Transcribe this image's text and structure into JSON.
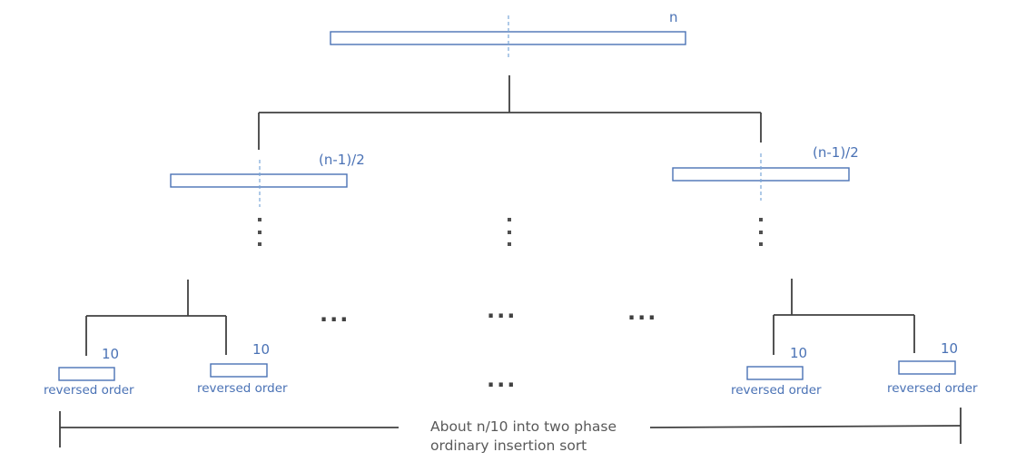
{
  "labels": {
    "top_size": "n",
    "left_size": "(n-1)/2",
    "right_size": "(n-1)/2",
    "leaf_size_1": "10",
    "leaf_size_2": "10",
    "leaf_size_3": "10",
    "leaf_size_4": "10",
    "leaf_order_1": "reversed order",
    "leaf_order_2": "reversed order",
    "leaf_order_3": "reversed order",
    "leaf_order_4": "reversed order",
    "ellipsis_1": "...",
    "ellipsis_2": "...",
    "ellipsis_3": "...",
    "ellipsis_4": "...",
    "caption_line1": "About n/10 into two phase",
    "caption_line2": "ordinary insertion sort"
  },
  "colors": {
    "array_outline": "#4a72b5",
    "tree_lines": "#404040",
    "label_text": "#4a72b5",
    "caption_text": "#595959"
  }
}
